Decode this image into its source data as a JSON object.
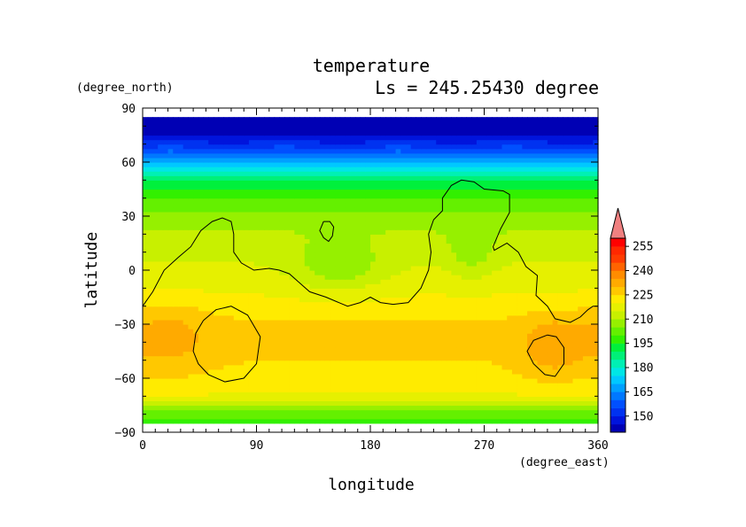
{
  "chart_data": {
    "type": "heatmap",
    "title": "temperature",
    "subtitle": "Ls = 245.25430 degree",
    "xlabel": "longitude",
    "ylabel": "latitude",
    "x_units": "(degree_east)",
    "y_units": "(degree_north)",
    "xlim": [
      0,
      360
    ],
    "ylim": [
      -90,
      90
    ],
    "x_ticks": [
      0,
      90,
      180,
      270,
      360
    ],
    "y_ticks": [
      -90,
      -60,
      -30,
      0,
      30,
      60,
      90
    ],
    "data_lat_range": [
      -85,
      85
    ],
    "colorbar": {
      "levels": [
        140,
        145,
        150,
        155,
        160,
        165,
        170,
        175,
        180,
        185,
        190,
        195,
        200,
        205,
        210,
        215,
        220,
        225,
        230,
        235,
        240,
        245,
        250,
        255,
        260
      ],
      "labels": [
        150,
        165,
        180,
        195,
        210,
        225,
        240,
        255
      ],
      "colors": [
        "#0000b4",
        "#0014dc",
        "#0032f0",
        "#0050ff",
        "#0078ff",
        "#00a0ff",
        "#00c8ff",
        "#00e6e6",
        "#00f0b4",
        "#00f078",
        "#00f03c",
        "#32f000",
        "#64f000",
        "#96f000",
        "#c8f000",
        "#e6f000",
        "#ffeb00",
        "#ffc800",
        "#ffaa00",
        "#ff8c00",
        "#ff6400",
        "#ff3c00",
        "#ff2800",
        "#ff0000"
      ],
      "extend_color": "#f08080"
    },
    "temperature_profile": {
      "lat": [
        -85,
        -80,
        -75,
        -70,
        -65,
        -60,
        -50,
        -40,
        -30,
        -20,
        -10,
        0,
        10,
        20,
        30,
        40,
        50,
        55,
        60,
        65,
        70,
        75,
        80,
        85
      ],
      "value": [
        196,
        202,
        212,
        219,
        222,
        223,
        225,
        226,
        226,
        222,
        219,
        216,
        214,
        211,
        207,
        200,
        190,
        181,
        171,
        161,
        152,
        145,
        142,
        141
      ]
    },
    "warm_regions": [
      {
        "center_lon": 20,
        "center_lat": -38,
        "lon_width": 70,
        "lat_width": 35,
        "peak": 232
      },
      {
        "center_lon": 325,
        "center_lat": -42,
        "lon_width": 55,
        "lat_width": 32,
        "peak": 234
      }
    ],
    "cool_regions": [
      {
        "center_lon": 155,
        "center_lat": 5,
        "lon_width": 70,
        "lat_width": 30,
        "peak": 206
      },
      {
        "center_lon": 260,
        "center_lat": 15,
        "lon_width": 35,
        "lat_width": 30,
        "peak": 205
      }
    ],
    "contours": [
      [
        [
          0,
          -20
        ],
        [
          8,
          -12
        ],
        [
          17,
          0
        ],
        [
          28,
          7
        ],
        [
          38,
          13
        ],
        [
          46,
          22
        ],
        [
          55,
          27
        ],
        [
          63,
          29
        ],
        [
          70,
          27
        ],
        [
          72,
          20
        ],
        [
          72,
          10
        ],
        [
          78,
          4
        ],
        [
          88,
          0
        ],
        [
          100,
          1
        ],
        [
          108,
          0
        ],
        [
          116,
          -2
        ],
        [
          124,
          -7
        ],
        [
          132,
          -12
        ],
        [
          145,
          -15
        ],
        [
          155,
          -18
        ],
        [
          162,
          -20
        ],
        [
          172,
          -18
        ],
        [
          180,
          -15
        ],
        [
          188,
          -18
        ],
        [
          198,
          -19
        ],
        [
          210,
          -18
        ],
        [
          220,
          -10
        ],
        [
          226,
          0
        ],
        [
          228,
          10
        ],
        [
          226,
          20
        ],
        [
          230,
          28
        ],
        [
          237,
          33
        ],
        [
          237,
          40
        ],
        [
          244,
          47
        ],
        [
          252,
          50
        ],
        [
          262,
          49
        ],
        [
          270,
          45
        ],
        [
          285,
          44
        ],
        [
          290,
          42
        ],
        [
          290,
          32
        ],
        [
          283,
          23
        ],
        [
          277,
          13
        ],
        [
          278,
          11
        ],
        [
          288,
          15
        ],
        [
          297,
          10
        ],
        [
          303,
          2
        ],
        [
          312,
          -3
        ],
        [
          311,
          -14
        ],
        [
          320,
          -20
        ],
        [
          326,
          -27
        ],
        [
          338,
          -29
        ],
        [
          346,
          -26
        ],
        [
          352,
          -22
        ],
        [
          356,
          -20
        ],
        [
          360,
          -20
        ]
      ],
      [
        [
          143,
          27
        ],
        [
          148,
          27
        ],
        [
          151,
          24
        ],
        [
          150,
          19
        ],
        [
          147,
          16
        ],
        [
          143,
          18
        ],
        [
          140,
          22
        ],
        [
          143,
          27
        ]
      ],
      [
        [
          48,
          -28
        ],
        [
          58,
          -22
        ],
        [
          70,
          -20
        ],
        [
          83,
          -25
        ],
        [
          93,
          -37
        ],
        [
          90,
          -52
        ],
        [
          80,
          -60
        ],
        [
          65,
          -62
        ],
        [
          52,
          -58
        ],
        [
          44,
          -52
        ],
        [
          40,
          -45
        ],
        [
          42,
          -35
        ],
        [
          48,
          -28
        ]
      ],
      [
        [
          320,
          -36
        ],
        [
          327,
          -37
        ],
        [
          333,
          -43
        ],
        [
          333,
          -52
        ],
        [
          326,
          -59
        ],
        [
          318,
          -58
        ],
        [
          309,
          -52
        ],
        [
          304,
          -45
        ],
        [
          309,
          -39
        ],
        [
          320,
          -36
        ]
      ]
    ]
  }
}
